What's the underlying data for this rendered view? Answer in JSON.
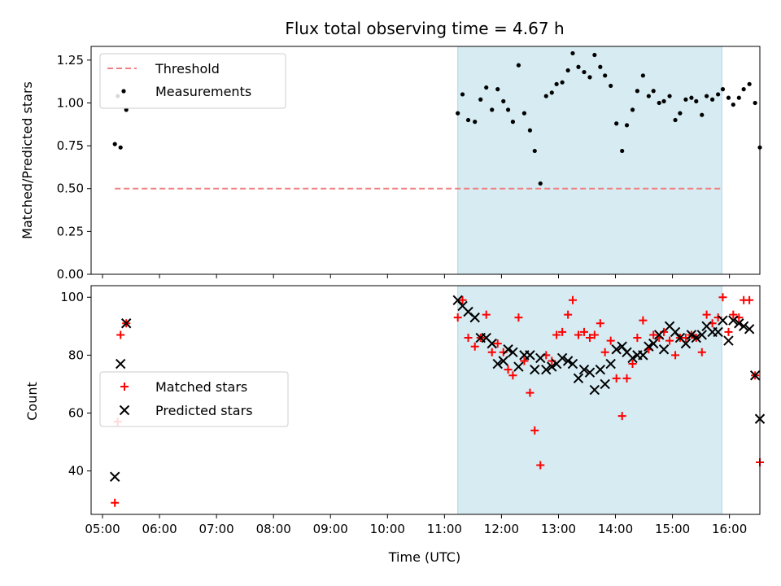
{
  "chart_data": [
    {
      "type": "scatter",
      "title": "Flux total observing time = 4.67 h",
      "ylabel": "Matched/Predicted stars",
      "xlabel": "",
      "xlim": [
        "04:48",
        "16:32"
      ],
      "ylim": [
        0,
        1.33
      ],
      "yticks": [
        "0.00",
        "0.25",
        "0.50",
        "0.75",
        "1.00",
        "1.25"
      ],
      "shaded_region": [
        "11:14",
        "15:52"
      ],
      "legend_position": "top-left",
      "threshold": {
        "name": "Threshold",
        "value": 0.5,
        "x_range": [
          "05:13",
          "15:52"
        ],
        "color": "#f08080"
      },
      "series": [
        {
          "name": "Measurements",
          "color": "#000000",
          "points": [
            [
              "05:13",
              0.76
            ],
            [
              "05:16",
              1.04
            ],
            [
              "05:19",
              0.74
            ],
            [
              "05:25",
              0.96
            ],
            [
              "11:14",
              0.94
            ],
            [
              "11:19",
              1.05
            ],
            [
              "11:25",
              0.9
            ],
            [
              "11:32",
              0.89
            ],
            [
              "11:38",
              1.02
            ],
            [
              "11:44",
              1.09
            ],
            [
              "11:50",
              0.96
            ],
            [
              "11:56",
              1.08
            ],
            [
              "12:02",
              1.01
            ],
            [
              "12:07",
              0.96
            ],
            [
              "12:12",
              0.89
            ],
            [
              "12:18",
              1.22
            ],
            [
              "12:24",
              0.94
            ],
            [
              "12:30",
              0.84
            ],
            [
              "12:35",
              0.72
            ],
            [
              "12:41",
              0.53
            ],
            [
              "12:47",
              1.04
            ],
            [
              "12:53",
              1.06
            ],
            [
              "12:58",
              1.11
            ],
            [
              "13:04",
              1.12
            ],
            [
              "13:10",
              1.19
            ],
            [
              "13:15",
              1.29
            ],
            [
              "13:21",
              1.21
            ],
            [
              "13:27",
              1.18
            ],
            [
              "13:33",
              1.15
            ],
            [
              "13:38",
              1.28
            ],
            [
              "13:44",
              1.21
            ],
            [
              "13:49",
              1.16
            ],
            [
              "13:55",
              1.1
            ],
            [
              "14:01",
              0.88
            ],
            [
              "14:07",
              0.72
            ],
            [
              "14:12",
              0.87
            ],
            [
              "14:18",
              0.96
            ],
            [
              "14:23",
              1.07
            ],
            [
              "14:29",
              1.16
            ],
            [
              "14:35",
              1.04
            ],
            [
              "14:40",
              1.07
            ],
            [
              "14:46",
              1.0
            ],
            [
              "14:51",
              1.01
            ],
            [
              "14:57",
              1.04
            ],
            [
              "15:03",
              0.9
            ],
            [
              "15:08",
              0.94
            ],
            [
              "15:14",
              1.02
            ],
            [
              "15:20",
              1.03
            ],
            [
              "15:25",
              1.01
            ],
            [
              "15:31",
              0.93
            ],
            [
              "15:36",
              1.04
            ],
            [
              "15:42",
              1.02
            ],
            [
              "15:48",
              1.05
            ],
            [
              "15:53",
              1.08
            ],
            [
              "15:59",
              1.03
            ],
            [
              "16:04",
              0.99
            ],
            [
              "16:10",
              1.03
            ],
            [
              "16:15",
              1.08
            ],
            [
              "16:21",
              1.11
            ],
            [
              "16:27",
              1.0
            ],
            [
              "16:32",
              0.74
            ]
          ]
        }
      ]
    },
    {
      "type": "scatter",
      "title": "",
      "xlabel": "Time (UTC)",
      "ylabel": "Count",
      "xlim": [
        "04:48",
        "16:32"
      ],
      "ylim": [
        25,
        104
      ],
      "yticks": [
        "40",
        "60",
        "80",
        "100"
      ],
      "xticks": [
        "05:00",
        "06:00",
        "07:00",
        "08:00",
        "09:00",
        "10:00",
        "11:00",
        "12:00",
        "13:00",
        "14:00",
        "15:00",
        "16:00"
      ],
      "shaded_region": [
        "11:14",
        "15:52"
      ],
      "legend_position": "center-left",
      "series": [
        {
          "name": "Matched stars",
          "color": "#ff0000",
          "marker": "+",
          "points": [
            [
              "05:13",
              29
            ],
            [
              "05:16",
              57
            ],
            [
              "05:19",
              87
            ],
            [
              "05:25",
              91
            ],
            [
              "11:14",
              93
            ],
            [
              "11:19",
              99
            ],
            [
              "11:25",
              86
            ],
            [
              "11:32",
              83
            ],
            [
              "11:38",
              86
            ],
            [
              "11:44",
              94
            ],
            [
              "11:50",
              81
            ],
            [
              "11:56",
              84
            ],
            [
              "12:02",
              81
            ],
            [
              "12:07",
              75
            ],
            [
              "12:12",
              73
            ],
            [
              "12:18",
              93
            ],
            [
              "12:24",
              78
            ],
            [
              "12:30",
              67
            ],
            [
              "12:35",
              54
            ],
            [
              "12:41",
              42
            ],
            [
              "12:47",
              80
            ],
            [
              "12:53",
              78
            ],
            [
              "12:58",
              87
            ],
            [
              "13:04",
              88
            ],
            [
              "13:10",
              94
            ],
            [
              "13:15",
              99
            ],
            [
              "13:21",
              87
            ],
            [
              "13:27",
              88
            ],
            [
              "13:33",
              86
            ],
            [
              "13:38",
              87
            ],
            [
              "13:44",
              91
            ],
            [
              "13:49",
              81
            ],
            [
              "13:55",
              85
            ],
            [
              "14:01",
              72
            ],
            [
              "14:07",
              59
            ],
            [
              "14:12",
              72
            ],
            [
              "14:18",
              77
            ],
            [
              "14:23",
              86
            ],
            [
              "14:29",
              92
            ],
            [
              "14:35",
              82
            ],
            [
              "14:40",
              87
            ],
            [
              "14:46",
              86
            ],
            [
              "14:51",
              88
            ],
            [
              "14:57",
              85
            ],
            [
              "15:03",
              80
            ],
            [
              "15:08",
              86
            ],
            [
              "15:14",
              86
            ],
            [
              "15:20",
              87
            ],
            [
              "15:25",
              86
            ],
            [
              "15:31",
              81
            ],
            [
              "15:36",
              94
            ],
            [
              "15:42",
              91
            ],
            [
              "15:48",
              93
            ],
            [
              "15:53",
              100
            ],
            [
              "15:59",
              88
            ],
            [
              "16:04",
              94
            ],
            [
              "16:10",
              93
            ],
            [
              "16:15",
              99
            ],
            [
              "16:21",
              99
            ],
            [
              "16:27",
              73
            ],
            [
              "16:32",
              43
            ]
          ]
        },
        {
          "name": "Predicted stars",
          "color": "#000000",
          "marker": "x",
          "points": [
            [
              "05:13",
              38
            ],
            [
              "05:19",
              77
            ],
            [
              "05:25",
              91
            ],
            [
              "11:14",
              99
            ],
            [
              "11:19",
              97
            ],
            [
              "11:25",
              95
            ],
            [
              "11:32",
              93
            ],
            [
              "11:38",
              86
            ],
            [
              "11:44",
              86
            ],
            [
              "11:50",
              84
            ],
            [
              "11:56",
              77
            ],
            [
              "12:02",
              78
            ],
            [
              "12:07",
              82
            ],
            [
              "12:12",
              81
            ],
            [
              "12:18",
              76
            ],
            [
              "12:24",
              80
            ],
            [
              "12:30",
              80
            ],
            [
              "12:35",
              75
            ],
            [
              "12:41",
              79
            ],
            [
              "12:47",
              75
            ],
            [
              "12:53",
              76
            ],
            [
              "12:58",
              77
            ],
            [
              "13:04",
              79
            ],
            [
              "13:10",
              78
            ],
            [
              "13:15",
              77
            ],
            [
              "13:21",
              72
            ],
            [
              "13:27",
              75
            ],
            [
              "13:33",
              74
            ],
            [
              "13:38",
              68
            ],
            [
              "13:44",
              75
            ],
            [
              "13:49",
              70
            ],
            [
              "13:55",
              77
            ],
            [
              "14:01",
              82
            ],
            [
              "14:07",
              83
            ],
            [
              "14:12",
              81
            ],
            [
              "14:18",
              79
            ],
            [
              "14:23",
              80
            ],
            [
              "14:29",
              80
            ],
            [
              "14:35",
              83
            ],
            [
              "14:40",
              84
            ],
            [
              "14:46",
              87
            ],
            [
              "14:51",
              82
            ],
            [
              "14:57",
              90
            ],
            [
              "15:03",
              88
            ],
            [
              "15:08",
              86
            ],
            [
              "15:14",
              84
            ],
            [
              "15:20",
              87
            ],
            [
              "15:25",
              86
            ],
            [
              "15:31",
              87
            ],
            [
              "15:36",
              90
            ],
            [
              "15:42",
              88
            ],
            [
              "15:48",
              88
            ],
            [
              "15:53",
              92
            ],
            [
              "15:59",
              85
            ],
            [
              "16:04",
              92
            ],
            [
              "16:10",
              91
            ],
            [
              "16:15",
              90
            ],
            [
              "16:21",
              89
            ],
            [
              "16:27",
              73
            ],
            [
              "16:32",
              58
            ]
          ]
        }
      ]
    }
  ]
}
